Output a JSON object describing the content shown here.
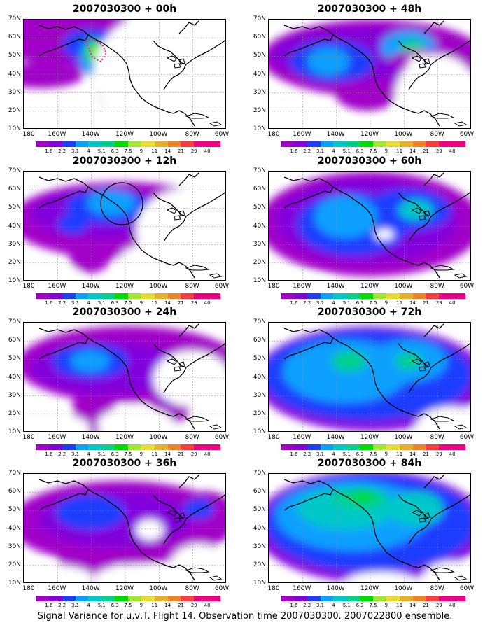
{
  "caption": "Signal Variance for u,v,T. Flight 14. Observation time 2007030300. 2007022800 ensemble.",
  "lat_labels": [
    "70N",
    "60N",
    "50N",
    "40N",
    "30N",
    "20N",
    "10N"
  ],
  "lon_labels": [
    "180",
    "160W",
    "140W",
    "120W",
    "100W",
    "80W",
    "60W"
  ],
  "colorbar": {
    "labels": [
      "1.6",
      "2.2",
      "3.1",
      "4",
      "5.1",
      "6.3",
      "7.5",
      "9",
      "11",
      "14",
      "21",
      "29",
      "40"
    ],
    "colors": [
      "#a000c8",
      "#8200dc",
      "#1e3cff",
      "#0aa0ff",
      "#00c8c8",
      "#00d28c",
      "#00dc00",
      "#a0e632",
      "#e6dc32",
      "#e6af2d",
      "#f08228",
      "#fa3c3c",
      "#f00082"
    ]
  },
  "panels": [
    {
      "title": "2007030300 + 00h"
    },
    {
      "title": "2007030300 + 48h"
    },
    {
      "title": "2007030300 + 12h"
    },
    {
      "title": "2007030300 + 60h"
    },
    {
      "title": "2007030300 + 24h"
    },
    {
      "title": "2007030300 + 72h"
    },
    {
      "title": "2007030300 + 36h"
    },
    {
      "title": "2007030300 + 84h"
    }
  ]
}
